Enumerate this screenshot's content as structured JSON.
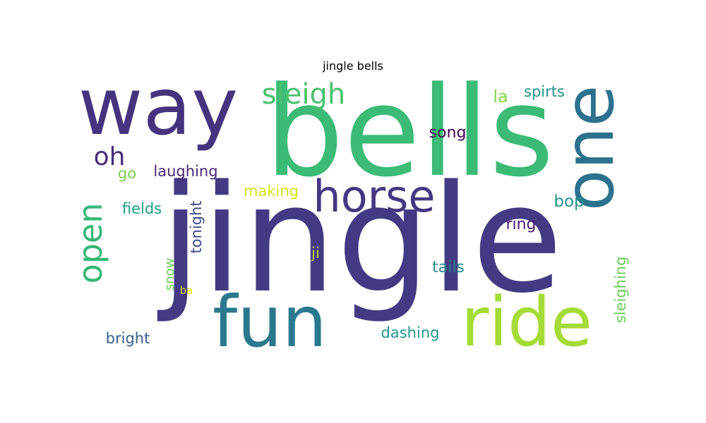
{
  "title": "jingle bells",
  "chart_data": {
    "type": "wordcloud",
    "title": "jingle bells",
    "words": [
      {
        "text": "jingle",
        "color": "#443a83"
      },
      {
        "text": "bells",
        "color": "#3bbb75"
      },
      {
        "text": "way",
        "color": "#46337e"
      },
      {
        "text": "one",
        "color": "#2c728e"
      },
      {
        "text": "fun",
        "color": "#2a788e"
      },
      {
        "text": "ride",
        "color": "#a5db36"
      },
      {
        "text": "horse",
        "color": "#453781"
      },
      {
        "text": "sleigh",
        "color": "#4ac16d"
      },
      {
        "text": "open",
        "color": "#35b779"
      },
      {
        "text": "oh",
        "color": "#472d7b"
      },
      {
        "text": "laughing",
        "color": "#482878"
      },
      {
        "text": "go",
        "color": "#7ad151"
      },
      {
        "text": "la",
        "color": "#86d549"
      },
      {
        "text": "spirts",
        "color": "#21918c"
      },
      {
        "text": "song",
        "color": "#440154"
      },
      {
        "text": "making",
        "color": "#d8e219"
      },
      {
        "text": "fields",
        "color": "#1f9e89"
      },
      {
        "text": "tonight",
        "color": "#3e4989"
      },
      {
        "text": "bop",
        "color": "#20928c"
      },
      {
        "text": "ring",
        "color": "#48186a"
      },
      {
        "text": "ji",
        "color": "#c2df23"
      },
      {
        "text": "tails",
        "color": "#23898e"
      },
      {
        "text": "snow",
        "color": "#6ece58"
      },
      {
        "text": "ba",
        "color": "#dde318"
      },
      {
        "text": "sleighing",
        "color": "#6ccd5a"
      },
      {
        "text": "dashing",
        "color": "#1f968b"
      },
      {
        "text": "bright",
        "color": "#355f8d"
      }
    ]
  }
}
